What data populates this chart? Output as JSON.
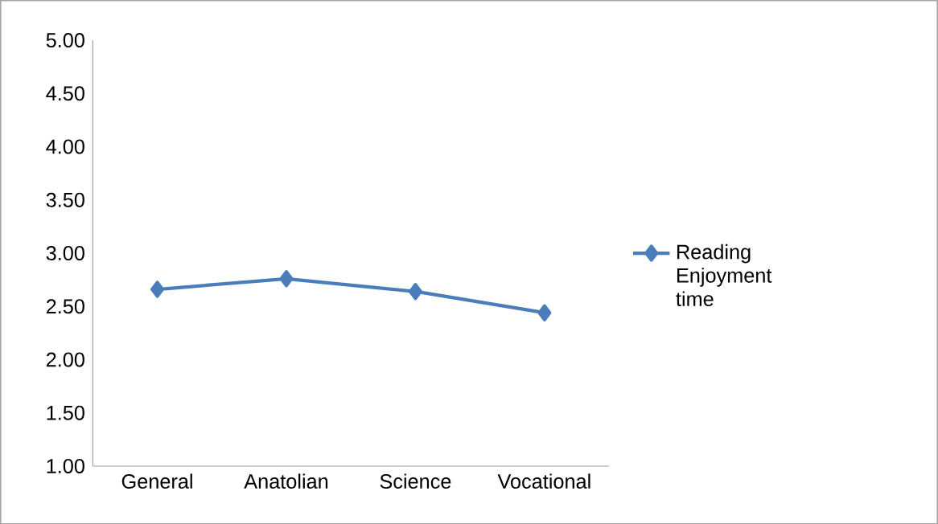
{
  "chart_data": {
    "type": "line",
    "categories": [
      "General",
      "Anatolian",
      "Science",
      "Vocational"
    ],
    "series": [
      {
        "name": "Reading Enjoyment time",
        "color": "#4a7ebb",
        "values": [
          2.66,
          2.76,
          2.64,
          2.44
        ]
      }
    ],
    "ylim": [
      1.0,
      5.0
    ],
    "yticks": [
      {
        "value": 1.0,
        "label": "1.00"
      },
      {
        "value": 1.5,
        "label": "1.50"
      },
      {
        "value": 2.0,
        "label": "2.00"
      },
      {
        "value": 2.5,
        "label": "2.50"
      },
      {
        "value": 3.0,
        "label": "3.00"
      },
      {
        "value": 3.5,
        "label": "3.50"
      },
      {
        "value": 4.0,
        "label": "4.00"
      },
      {
        "value": 4.5,
        "label": "4.50"
      },
      {
        "value": 5.0,
        "label": "5.00"
      }
    ],
    "legend": "right",
    "marker": "diamond",
    "line_style": "solid",
    "grid": false
  }
}
